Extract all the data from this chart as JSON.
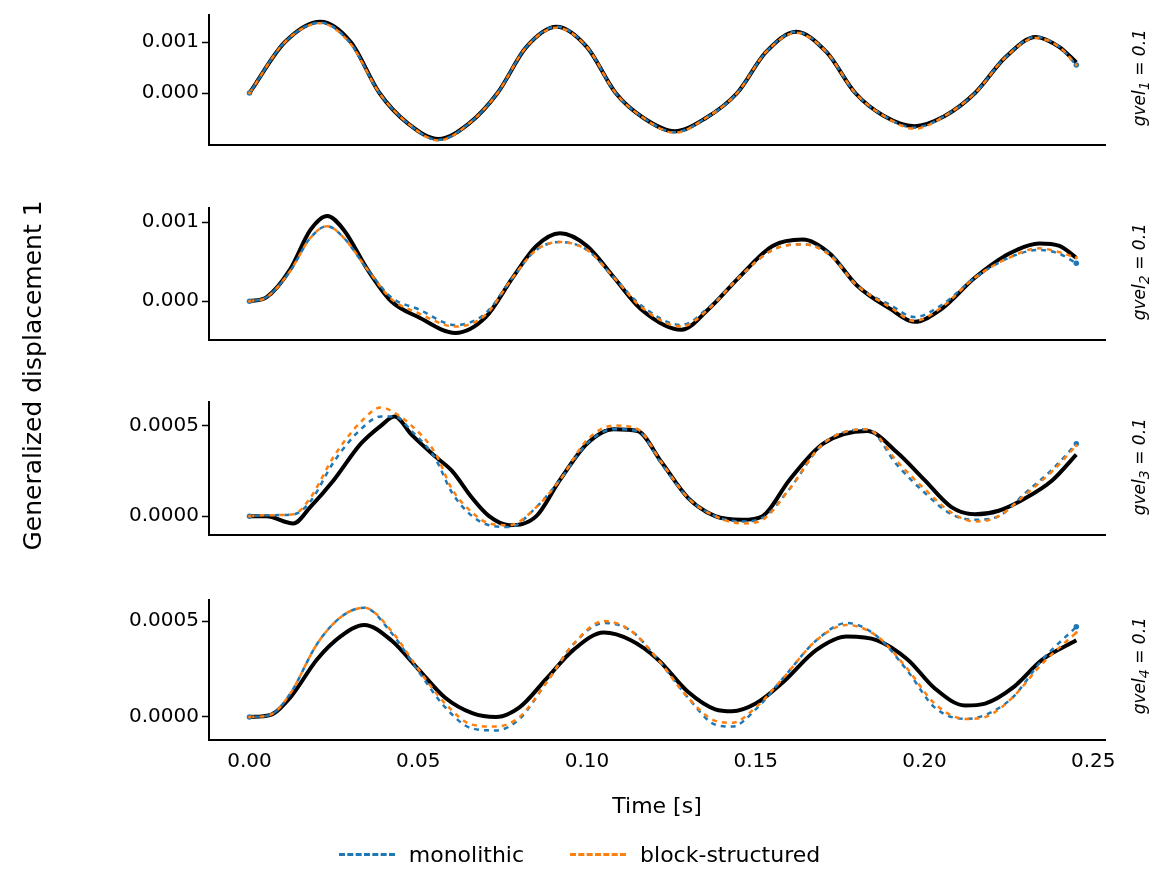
{
  "chart_data": [
    {
      "type": "line",
      "ylabel": "Generalized displacement 1",
      "annotations": [
        "gvel$_{1}$ = 0.1"
      ],
      "tick_labels": "y",
      "xlim": [
        -0.012,
        0.2535
      ],
      "xticks": [
        {
          "value": 0,
          "label": null
        },
        {
          "value": 0.05,
          "label": null
        },
        {
          "value": 0.1,
          "label": null
        },
        {
          "value": 0.15,
          "label": null
        },
        {
          "value": 0.2,
          "label": null
        },
        {
          "value": 0.25,
          "label": null
        }
      ],
      "ylim": [
        -0.00102,
        0.00153
      ],
      "yticks": [
        {
          "value": 0,
          "label": "0.000"
        },
        {
          "value": 0.001,
          "label": "0.001"
        }
      ],
      "x": [
        0,
        0.0105,
        0.021,
        0.03,
        0.0385,
        0.047,
        0.056,
        0.065,
        0.0735,
        0.082,
        0.091,
        0.1,
        0.1085,
        0.117,
        0.126,
        0.135,
        0.1445,
        0.153,
        0.162,
        0.171,
        0.1795,
        0.188,
        0.197,
        0.206,
        0.215,
        0.224,
        0.233,
        0.24,
        0.245
      ],
      "series": [
        {
          "color": "#000000",
          "line_style": "solid",
          "values": [
            0,
            0.001,
            0.0014,
            0.001,
            0,
            -0.0006,
            -0.0009,
            -0.0006,
            0,
            0.0009,
            0.0013,
            0.0009,
            0,
            -0.0005,
            -0.00075,
            -0.0005,
            0,
            0.0008,
            0.0012,
            0.0008,
            0,
            -0.00045,
            -0.00065,
            -0.00045,
            0,
            0.0007,
            0.0011,
            0.0009,
            0.0006
          ]
        },
        {
          "color": "#1f77b4",
          "line_style": "dashed",
          "values": [
            0,
            0.001,
            0.00138,
            0.00097,
            0,
            -0.0006,
            -0.00092,
            -0.0006,
            0,
            0.0009,
            0.0013,
            0.0009,
            0,
            -0.0005,
            -0.00077,
            -0.0005,
            0,
            0.0008,
            0.0012,
            0.0008,
            0,
            -0.00045,
            -0.00068,
            -0.00045,
            0,
            0.0007,
            0.0011,
            0.0009,
            0.00055
          ]
        },
        {
          "color": "#ff7f0e",
          "line_style": "dashed",
          "values": [
            0,
            0.001,
            0.00137,
            0.00096,
            0,
            -0.0006,
            -0.00093,
            -0.0006,
            0,
            0.0009,
            0.00128,
            0.0009,
            0,
            -0.0005,
            -0.00078,
            -0.0005,
            0,
            0.0008,
            0.00118,
            0.0008,
            0,
            -0.00045,
            -0.0007,
            -0.00045,
            0,
            0.0007,
            0.00108,
            0.0009,
            0.00055
          ]
        }
      ]
    },
    {
      "type": "line",
      "annotations": [
        "gvel$_{2}$ = 0.1"
      ],
      "tick_labels": "y",
      "xlim": [
        -0.012,
        0.2535
      ],
      "xticks": [
        {
          "value": 0,
          "label": null
        },
        {
          "value": 0.05,
          "label": null
        },
        {
          "value": 0.1,
          "label": null
        },
        {
          "value": 0.15,
          "label": null
        },
        {
          "value": 0.2,
          "label": null
        },
        {
          "value": 0.25,
          "label": null
        }
      ],
      "ylim": [
        -0.00049,
        0.00118
      ],
      "yticks": [
        {
          "value": 0,
          "label": "0.000"
        },
        {
          "value": 0.001,
          "label": "0.001"
        }
      ],
      "x": [
        0,
        0.005,
        0.012,
        0.018,
        0.023,
        0.028,
        0.035,
        0.042,
        0.05,
        0.061,
        0.07,
        0.078,
        0.085,
        0.092,
        0.1,
        0.108,
        0.116,
        0.128,
        0.136,
        0.145,
        0.155,
        0.164,
        0.172,
        0.18,
        0.19,
        0.197,
        0.205,
        0.215,
        0.225,
        0.234,
        0.24,
        0.245
      ],
      "series": [
        {
          "color": "#000000",
          "line_style": "solid",
          "values": [
            0,
            5e-05,
            0.0004,
            0.0009,
            0.00108,
            0.0009,
            0.0004,
            0,
            -0.0002,
            -0.0004,
            -0.0002,
            0.0003,
            0.0007,
            0.00086,
            0.0007,
            0.0003,
            -0.0001,
            -0.00036,
            -0.0001,
            0.0003,
            0.0007,
            0.00078,
            0.0006,
            0.0002,
            -0.0001,
            -0.00026,
            -0.0001,
            0.0003,
            0.0006,
            0.00073,
            0.0007,
            0.00055
          ]
        },
        {
          "color": "#1f77b4",
          "line_style": "dashed",
          "values": [
            0,
            5e-05,
            0.00038,
            0.0008,
            0.00095,
            0.0008,
            0.0004,
            5e-05,
            -0.0001,
            -0.0003,
            -0.00015,
            0.0003,
            0.00065,
            0.00075,
            0.00065,
            0.0003,
            -5e-05,
            -0.0003,
            -8e-05,
            0.0003,
            0.00065,
            0.00072,
            0.0006,
            0.0002,
            -5e-05,
            -0.0002,
            -5e-05,
            0.0003,
            0.00055,
            0.00065,
            0.0006,
            0.00048
          ]
        },
        {
          "color": "#ff7f0e",
          "line_style": "dashed",
          "values": [
            0,
            5e-05,
            0.00038,
            0.0008,
            0.00095,
            0.0008,
            0.0004,
            3e-05,
            -0.00015,
            -0.00032,
            -0.00017,
            0.0003,
            0.00065,
            0.00075,
            0.00065,
            0.0003,
            -7e-05,
            -0.00032,
            -0.0001,
            0.0003,
            0.00065,
            0.00072,
            0.00058,
            0.0002,
            -8e-05,
            -0.00025,
            -8e-05,
            0.0003,
            0.00055,
            0.00067,
            0.00062,
            0.00055
          ]
        }
      ]
    },
    {
      "type": "line",
      "annotations": [
        "gvel$_{3}$ = 0.1"
      ],
      "tick_labels": "y",
      "xlim": [
        -0.012,
        0.2535
      ],
      "xticks": [
        {
          "value": 0,
          "label": null
        },
        {
          "value": 0.05,
          "label": null
        },
        {
          "value": 0.1,
          "label": null
        },
        {
          "value": 0.15,
          "label": null
        },
        {
          "value": 0.2,
          "label": null
        },
        {
          "value": 0.25,
          "label": null
        }
      ],
      "ylim": [
        -0.000104,
        0.00063
      ],
      "yticks": [
        {
          "value": 0,
          "label": "0.0000"
        },
        {
          "value": 0.0005,
          "label": "0.0005"
        }
      ],
      "x": [
        0,
        0.005,
        0.013,
        0.018,
        0.025,
        0.033,
        0.039,
        0.043,
        0.048,
        0.055,
        0.06,
        0.066,
        0.071,
        0.077,
        0.085,
        0.092,
        0.1,
        0.108,
        0.115,
        0.122,
        0.13,
        0.138,
        0.146,
        0.152,
        0.16,
        0.17,
        0.183,
        0.192,
        0.2,
        0.208,
        0.215,
        0.222,
        0.23,
        0.238,
        0.245
      ],
      "series": [
        {
          "color": "#000000",
          "line_style": "solid",
          "values": [
            0,
            0,
            -4e-05,
            5e-05,
            0.0002,
            0.0004,
            0.0005,
            0.00055,
            0.00045,
            0.00033,
            0.00025,
            0.0001,
            0,
            -5e-05,
            0,
            0.0002,
            0.0004,
            0.00048,
            0.00047,
            0.0003,
            0.0001,
            0,
            -2e-05,
            0,
            0.0002,
            0.0004,
            0.00047,
            0.00035,
            0.0002,
            5e-05,
            1e-05,
            3e-05,
            0.0001,
            0.0002,
            0.00034
          ]
        },
        {
          "color": "#1f77b4",
          "line_style": "dashed",
          "values": [
            0,
            5e-06,
            1e-05,
            8e-05,
            0.0003,
            0.00048,
            0.00055,
            0.00055,
            0.00047,
            0.00032,
            0.00013,
            0,
            -5e-05,
            -6e-05,
            5e-05,
            0.0002,
            0.0004,
            0.00048,
            0.00047,
            0.00029,
            0.0001,
            0,
            -3e-05,
            -1e-05,
            0.00015,
            0.0004,
            0.00048,
            0.00028,
            0.00013,
            1e-05,
            -2e-05,
            0,
            0.00013,
            0.00026,
            0.0004
          ]
        },
        {
          "color": "#ff7f0e",
          "line_style": "dashed",
          "values": [
            0,
            5e-06,
            1e-05,
            0.0001,
            0.00033,
            0.00052,
            0.0006,
            0.00057,
            0.0005,
            0.00035,
            0.00015,
            2e-05,
            -4e-05,
            -5e-05,
            5e-05,
            0.0002,
            0.00042,
            0.0005,
            0.00048,
            0.0003,
            0.0001,
            0,
            -4e-05,
            -2e-05,
            0.00015,
            0.0004,
            0.00048,
            0.0003,
            0.00015,
            2e-05,
            -3e-05,
            0,
            0.00012,
            0.00025,
            0.00039
          ]
        }
      ]
    },
    {
      "type": "line",
      "annotations": [
        "gvel$_{4}$ = 0.1"
      ],
      "xlabel": "Time [s]",
      "legend": "bottom",
      "xlim": [
        -0.012,
        0.2535
      ],
      "xticks": [
        {
          "value": 0,
          "label": "0.00"
        },
        {
          "value": 0.05,
          "label": "0.05"
        },
        {
          "value": 0.1,
          "label": "0.10"
        },
        {
          "value": 0.15,
          "label": "0.15"
        },
        {
          "value": 0.2,
          "label": "0.20"
        },
        {
          "value": 0.25,
          "label": "0.25"
        }
      ],
      "ylim": [
        -0.00012,
        0.00061
      ],
      "yticks": [
        {
          "value": 0,
          "label": "0.0000"
        },
        {
          "value": 0.0005,
          "label": "0.0005"
        }
      ],
      "x": [
        0,
        0.006,
        0.012,
        0.02,
        0.027,
        0.034,
        0.042,
        0.05,
        0.058,
        0.066,
        0.073,
        0.08,
        0.088,
        0.096,
        0.105,
        0.113,
        0.121,
        0.13,
        0.138,
        0.143,
        0.15,
        0.158,
        0.168,
        0.177,
        0.186,
        0.195,
        0.203,
        0.212,
        0.218,
        0.226,
        0.235,
        0.245
      ],
      "series": [
        {
          "color": "#000000",
          "line_style": "solid",
          "values": [
            0,
            1e-05,
            0.0001,
            0.0003,
            0.00042,
            0.00048,
            0.0004,
            0.00025,
            0.0001,
            2e-05,
            0,
            5e-05,
            0.0002,
            0.00035,
            0.00044,
            0.0004,
            0.0003,
            0.00013,
            4e-05,
            3e-05,
            7e-05,
            0.00018,
            0.00035,
            0.00042,
            0.0004,
            0.0003,
            0.00015,
            6e-05,
            7e-05,
            0.00015,
            0.0003,
            0.0004
          ]
        },
        {
          "name": "monolithic",
          "color": "#1f77b4",
          "line_style": "dashed",
          "values": [
            0,
            1e-05,
            0.00012,
            0.00038,
            0.00052,
            0.00057,
            0.00044,
            0.00024,
            5e-05,
            -6e-05,
            -7e-05,
            -1e-05,
            0.00018,
            0.00038,
            0.00049,
            0.00045,
            0.0003,
            0.0001,
            -4e-05,
            -5e-05,
            4e-05,
            0.0002,
            0.0004,
            0.00049,
            0.00042,
            0.00024,
            5e-05,
            -1e-05,
            1e-05,
            0.0001,
            0.0003,
            0.00047
          ]
        },
        {
          "name": "block-structured",
          "color": "#ff7f0e",
          "line_style": "dashed",
          "values": [
            0,
            1e-05,
            0.00012,
            0.00038,
            0.00052,
            0.00057,
            0.00045,
            0.00025,
            7e-05,
            -4e-05,
            -5e-05,
            0,
            0.00018,
            0.00038,
            0.0005,
            0.00045,
            0.0003,
            0.0001,
            -2e-05,
            -3e-05,
            5e-05,
            0.0002,
            0.0004,
            0.00048,
            0.00042,
            0.00025,
            7e-05,
            -1e-05,
            0,
            0.0001,
            0.00028,
            0.00044
          ]
        }
      ]
    }
  ]
}
